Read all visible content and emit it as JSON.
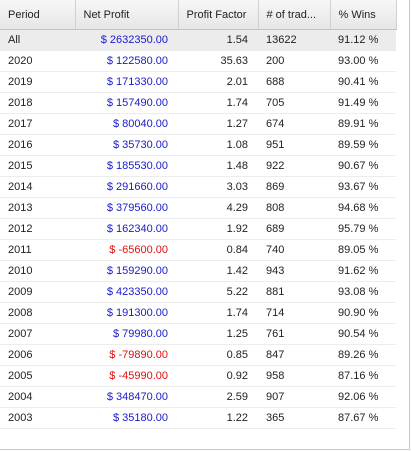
{
  "table": {
    "header": [
      "Period",
      "Net Profit",
      "Profit Factor",
      "# of trad...",
      "% Wins"
    ],
    "rows": [
      [
        "All",
        "$ 2632350.00",
        "1.54",
        "13622",
        "91.12 %"
      ],
      [
        "2020",
        "$ 122580.00",
        "35.63",
        "200",
        "93.00 %"
      ],
      [
        "2019",
        "$ 171330.00",
        "2.01",
        "688",
        "90.41 %"
      ],
      [
        "2018",
        "$ 157490.00",
        "1.74",
        "705",
        "91.49 %"
      ],
      [
        "2017",
        "$ 80040.00",
        "1.27",
        "674",
        "89.91 %"
      ],
      [
        "2016",
        "$ 35730.00",
        "1.08",
        "951",
        "89.59 %"
      ],
      [
        "2015",
        "$ 185530.00",
        "1.48",
        "922",
        "90.67 %"
      ],
      [
        "2014",
        "$ 291660.00",
        "3.03",
        "869",
        "93.67 %"
      ],
      [
        "2013",
        "$ 379560.00",
        "4.29",
        "808",
        "94.68 %"
      ],
      [
        "2012",
        "$ 162340.00",
        "1.92",
        "689",
        "95.79 %"
      ],
      [
        "2011",
        "$ -65600.00",
        "0.84",
        "740",
        "89.05 %"
      ],
      [
        "2010",
        "$ 159290.00",
        "1.42",
        "943",
        "91.62 %"
      ],
      [
        "2009",
        "$ 423350.00",
        "5.22",
        "881",
        "93.08 %"
      ],
      [
        "2008",
        "$ 191300.00",
        "1.74",
        "714",
        "90.90 %"
      ],
      [
        "2007",
        "$ 79980.00",
        "1.25",
        "761",
        "90.54 %"
      ],
      [
        "2006",
        "$ -79890.00",
        "0.85",
        "847",
        "89.26 %"
      ],
      [
        "2005",
        "$ -45990.00",
        "0.92",
        "958",
        "87.16 %"
      ],
      [
        "2004",
        "$ 348470.00",
        "2.59",
        "907",
        "92.06 %"
      ],
      [
        "2003",
        "$ 35180.00",
        "1.22",
        "365",
        "87.67 %"
      ]
    ]
  }
}
